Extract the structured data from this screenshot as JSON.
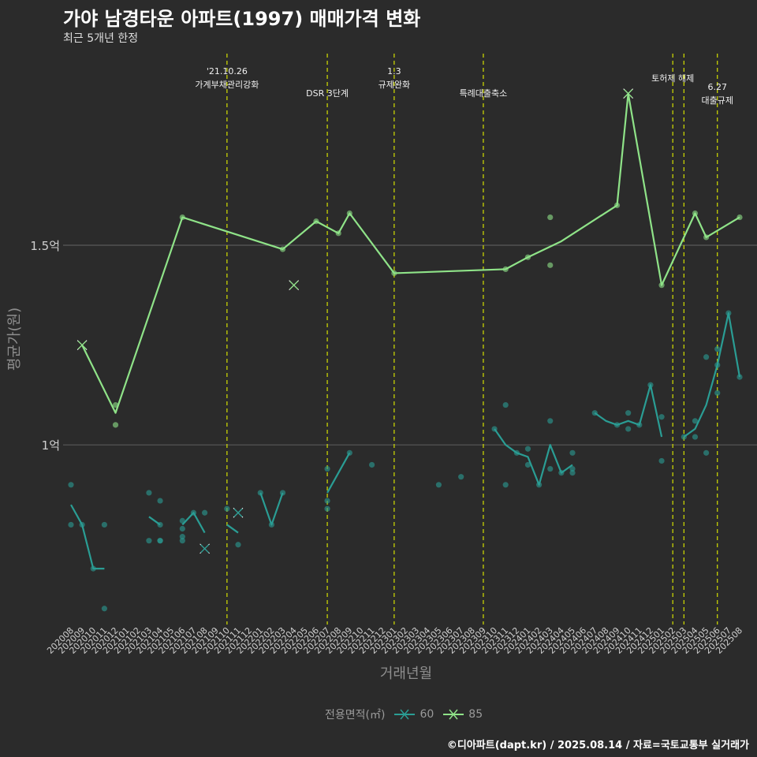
{
  "title": "가야 남경타운 아파트(1997) 매매가격 변화",
  "subtitle": "최근 5개년 한정",
  "caption": "©디아파트(dapt.kr) / 2025.08.14 / 자료=국토교통부 실거래가",
  "legend": {
    "title": "전용면적(㎡)",
    "items": [
      {
        "label": "60",
        "color": "#2a9d94"
      },
      {
        "label": "85",
        "color": "#8fe388"
      }
    ]
  },
  "chart_data": {
    "type": "line",
    "xlabel": "거래년월",
    "ylabel": "평균가(원)",
    "ylim": [
      0.55,
      1.98
    ],
    "yticks": [
      {
        "v": 1.0,
        "label": "1억"
      },
      {
        "v": 1.5,
        "label": "1.5억"
      }
    ],
    "grid": true,
    "months": [
      "202008",
      "202009",
      "202010",
      "202011",
      "202012",
      "202101",
      "202102",
      "202103",
      "202104",
      "202105",
      "202106",
      "202107",
      "202108",
      "202109",
      "202110",
      "202111",
      "202112",
      "202201",
      "202202",
      "202203",
      "202204",
      "202205",
      "202206",
      "202207",
      "202208",
      "202209",
      "202210",
      "202211",
      "202212",
      "202301",
      "202302",
      "202303",
      "202304",
      "202305",
      "202306",
      "202307",
      "202308",
      "202309",
      "202310",
      "202311",
      "202312",
      "202401",
      "202402",
      "202403",
      "202404",
      "202405",
      "202406",
      "202407",
      "202408",
      "202409",
      "202410",
      "202411",
      "202412",
      "202501",
      "202502",
      "202503",
      "202504",
      "202505",
      "202506",
      "202507",
      "202508"
    ],
    "events": [
      {
        "x": "202110",
        "lines": [
          "'21.10.26",
          "가계부채관리강화"
        ],
        "row": 0
      },
      {
        "x": "202207",
        "lines": [
          "DSR 3단계"
        ],
        "row": 2
      },
      {
        "x": "202301",
        "lines": [
          "1.3",
          "규제완화"
        ],
        "row": 0
      },
      {
        "x": "202309",
        "lines": [
          "특례대출축소"
        ],
        "row": 2
      },
      {
        "x": "202502",
        "lines": [
          "토허제 해제"
        ],
        "row": 1
      },
      {
        "x": "202503",
        "lines": [],
        "row": 0
      },
      {
        "x": "202506",
        "lines": [
          "6.27",
          "대출규제"
        ],
        "row": 3
      }
    ],
    "series": [
      {
        "name": "60",
        "color": "#2a9d94",
        "line": [
          [
            "202008",
            0.85
          ],
          [
            "202009",
            0.8
          ],
          [
            "202010",
            0.69
          ],
          [
            "202011",
            0.69
          ],
          null,
          [
            "202103",
            0.82
          ],
          [
            "202104",
            0.8
          ],
          null,
          [
            "202106",
            0.8
          ],
          [
            "202107",
            0.83
          ],
          [
            "202108",
            0.78
          ],
          null,
          [
            "202110",
            0.8
          ],
          [
            "202111",
            0.78
          ],
          null,
          [
            "202201",
            0.88
          ],
          [
            "202202",
            0.8
          ],
          [
            "202203",
            0.88
          ],
          null,
          [
            "202207",
            0.88
          ],
          [
            "202209",
            0.98
          ],
          null,
          [
            "202310",
            1.04
          ],
          [
            "202311",
            1.0
          ],
          [
            "202312",
            0.98
          ],
          [
            "202401",
            0.97
          ],
          [
            "202402",
            0.9
          ],
          [
            "202403",
            1.0
          ],
          [
            "202404",
            0.93
          ],
          [
            "202405",
            0.95
          ],
          null,
          [
            "202407",
            1.08
          ],
          [
            "202408",
            1.06
          ],
          [
            "202409",
            1.05
          ],
          [
            "202410",
            1.06
          ],
          [
            "202411",
            1.05
          ],
          [
            "202412",
            1.15
          ],
          [
            "202501",
            1.02
          ],
          null,
          [
            "202503",
            1.02
          ],
          [
            "202504",
            1.04
          ],
          [
            "202505",
            1.1
          ],
          [
            "202506",
            1.2
          ],
          [
            "202507",
            1.33
          ],
          [
            "202508",
            1.17
          ]
        ],
        "points": [
          [
            "202008",
            0.9
          ],
          [
            "202008",
            0.8
          ],
          [
            "202009",
            0.8
          ],
          [
            "202010",
            0.69
          ],
          [
            "202011",
            0.8
          ],
          [
            "202011",
            0.59
          ],
          [
            "202103",
            0.88
          ],
          [
            "202103",
            0.76
          ],
          [
            "202104",
            0.86
          ],
          [
            "202104",
            0.8
          ],
          [
            "202104",
            0.76
          ],
          [
            "202104",
            0.76
          ],
          [
            "202106",
            0.81
          ],
          [
            "202106",
            0.79
          ],
          [
            "202106",
            0.77
          ],
          [
            "202106",
            0.76
          ],
          [
            "202107",
            0.83
          ],
          [
            "202108",
            0.83
          ],
          [
            "202110",
            0.84
          ],
          [
            "202111",
            0.75
          ],
          [
            "202201",
            0.88
          ],
          [
            "202202",
            0.8
          ],
          [
            "202203",
            0.88
          ],
          [
            "202207",
            0.94
          ],
          [
            "202207",
            0.86
          ],
          [
            "202207",
            0.84
          ],
          [
            "202209",
            0.98
          ],
          [
            "202211",
            0.95
          ],
          [
            "202305",
            0.9
          ],
          [
            "202307",
            0.92
          ],
          [
            "202310",
            1.04
          ],
          [
            "202311",
            1.1
          ],
          [
            "202311",
            0.9
          ],
          [
            "202312",
            0.98
          ],
          [
            "202401",
            0.99
          ],
          [
            "202401",
            0.95
          ],
          [
            "202402",
            0.9
          ],
          [
            "202403",
            1.06
          ],
          [
            "202403",
            0.94
          ],
          [
            "202404",
            0.93
          ],
          [
            "202405",
            0.98
          ],
          [
            "202405",
            0.94
          ],
          [
            "202405",
            0.93
          ],
          [
            "202407",
            1.08
          ],
          [
            "202409",
            1.05
          ],
          [
            "202410",
            1.08
          ],
          [
            "202410",
            1.04
          ],
          [
            "202411",
            1.05
          ],
          [
            "202412",
            1.15
          ],
          [
            "202501",
            1.07
          ],
          [
            "202501",
            0.96
          ],
          [
            "202503",
            1.02
          ],
          [
            "202504",
            1.06
          ],
          [
            "202504",
            1.02
          ],
          [
            "202505",
            1.22
          ],
          [
            "202505",
            0.98
          ],
          [
            "202506",
            1.24
          ],
          [
            "202506",
            1.2
          ],
          [
            "202506",
            1.13
          ],
          [
            "202507",
            1.33
          ],
          [
            "202508",
            1.17
          ]
        ],
        "crosses": [
          [
            "202108",
            0.74
          ],
          [
            "202111",
            0.83
          ]
        ]
      },
      {
        "name": "85",
        "color": "#8fe388",
        "line": [
          [
            "202009",
            1.25
          ],
          [
            "202012",
            1.08
          ],
          [
            "202106",
            1.57
          ],
          [
            "202203",
            1.49
          ],
          [
            "202206",
            1.56
          ],
          [
            "202208",
            1.53
          ],
          [
            "202209",
            1.58
          ],
          [
            "202301",
            1.43
          ],
          [
            "202311",
            1.44
          ],
          [
            "202401",
            1.47
          ],
          [
            "202404",
            1.51
          ],
          [
            "202409",
            1.6
          ],
          [
            "202410",
            1.88
          ],
          [
            "202501",
            1.4
          ],
          [
            "202504",
            1.58
          ],
          [
            "202505",
            1.52
          ],
          [
            "202508",
            1.57
          ]
        ],
        "points": [
          [
            "202012",
            1.1
          ],
          [
            "202012",
            1.05
          ],
          [
            "202106",
            1.57
          ],
          [
            "202203",
            1.49
          ],
          [
            "202206",
            1.56
          ],
          [
            "202208",
            1.53
          ],
          [
            "202209",
            1.58
          ],
          [
            "202301",
            1.43
          ],
          [
            "202311",
            1.44
          ],
          [
            "202401",
            1.47
          ],
          [
            "202403",
            1.57
          ],
          [
            "202403",
            1.45
          ],
          [
            "202409",
            1.6
          ],
          [
            "202501",
            1.4
          ],
          [
            "202504",
            1.58
          ],
          [
            "202505",
            1.52
          ],
          [
            "202508",
            1.57
          ]
        ],
        "crosses": [
          [
            "202009",
            1.25
          ],
          [
            "202204",
            1.4
          ],
          [
            "202410",
            1.88
          ]
        ]
      }
    ]
  }
}
